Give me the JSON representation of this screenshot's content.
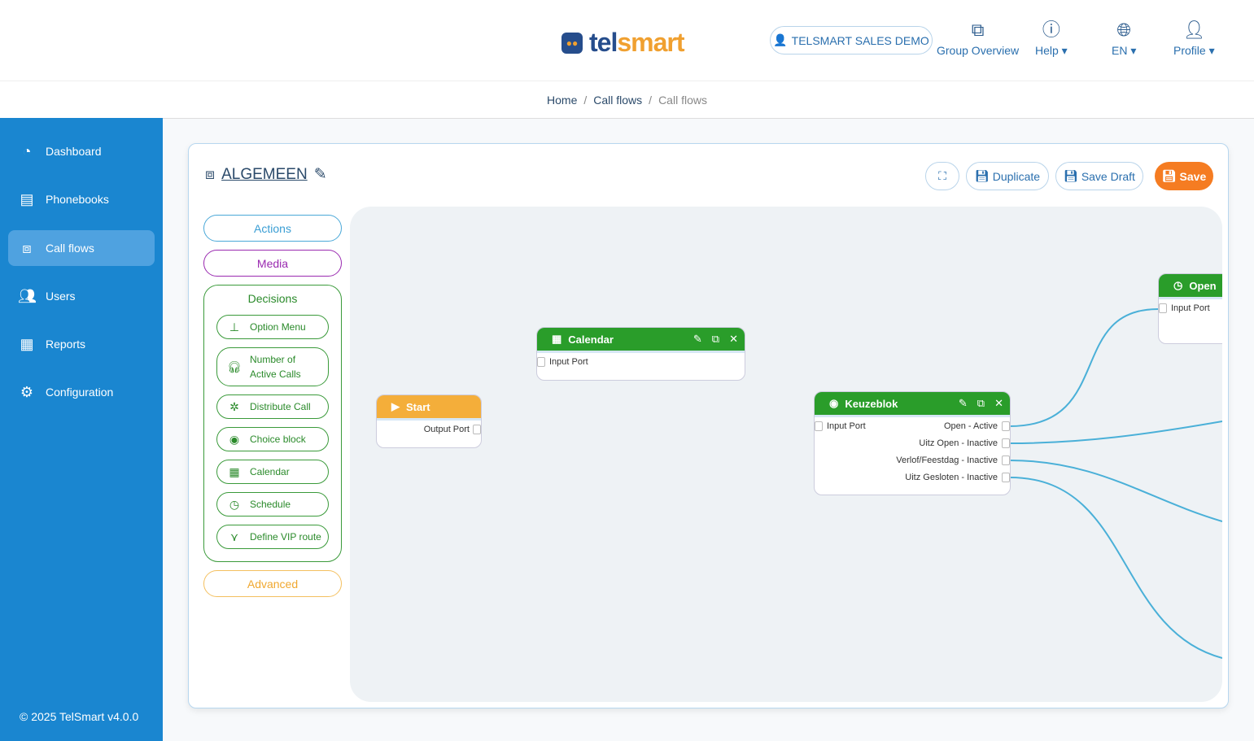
{
  "header": {
    "logo": {
      "part1": "tel",
      "part2": "smart"
    },
    "account_label": "TELSMART SALES DEMO",
    "nav": [
      {
        "label": "Group Overview",
        "icon": "group-overview-icon"
      },
      {
        "label": "Help",
        "icon": "help-icon"
      },
      {
        "label": "EN",
        "icon": "globe-icon"
      },
      {
        "label": "Profile",
        "icon": "user-icon"
      }
    ]
  },
  "breadcrumb": [
    "Home",
    "Call flows",
    "Call flows"
  ],
  "sidebar": {
    "items": [
      {
        "label": "Dashboard",
        "icon": "dashboard-icon"
      },
      {
        "label": "Phonebooks",
        "icon": "phonebook-icon"
      },
      {
        "label": "Call flows",
        "icon": "call-flows-icon",
        "active": true
      },
      {
        "label": "Users",
        "icon": "users-icon"
      },
      {
        "label": "Reports",
        "icon": "reports-icon"
      },
      {
        "label": "Configuration",
        "icon": "gear-icon"
      }
    ],
    "footer": "© 2025 TelSmart  v4.0.0"
  },
  "flow": {
    "title": "ALGEMEEN",
    "buttons": {
      "duplicate": "Duplicate",
      "save_draft": "Save Draft",
      "save": "Save"
    }
  },
  "palette": {
    "actions": "Actions",
    "media": "Media",
    "decisions": "Decisions",
    "advanced": "Advanced",
    "decision_items": [
      "Option Menu",
      "Number of Active Calls",
      "Distribute Call",
      "Choice block",
      "Calendar",
      "Schedule",
      "Define VIP route"
    ]
  },
  "nodes": {
    "start": {
      "title": "Start",
      "output": "Output Port"
    },
    "calendar": {
      "title": "Calendar",
      "input": "Input Port"
    },
    "keuzeblok": {
      "title": "Keuzeblok",
      "input": "Input Port",
      "outputs": [
        "Open - Active",
        "Uitz Open - Inactive",
        "Verlof/Feestdag - Inactive",
        "Uitz Gesloten - Inactive"
      ]
    },
    "open": {
      "title": "Open",
      "input": "Input Port"
    }
  },
  "colors": {
    "sidebar": "#1a86d0",
    "node_green": "#2a9d2a",
    "start_orange": "#f4ae3a",
    "save": "#f57c22",
    "connection": "#4ab0d8"
  }
}
